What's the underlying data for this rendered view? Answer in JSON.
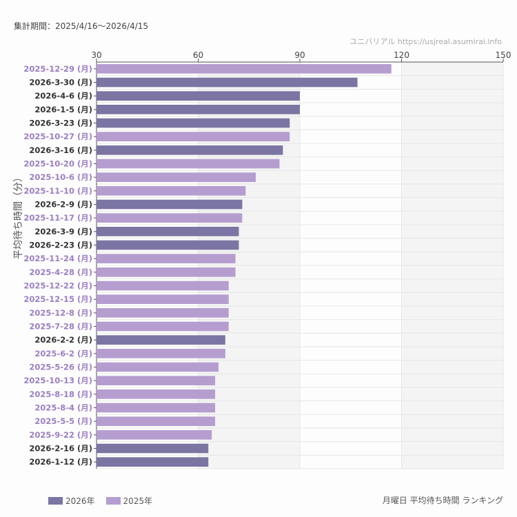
{
  "header": {
    "period": "集計期間：2025/4/16〜2026/4/15",
    "credit": "ユニバリアル https://usjreal.asumirai.info"
  },
  "footer": {
    "caption": "月曜日 平均待ち時間 ランキング"
  },
  "colors": {
    "2026": "#7b75a3",
    "2025": "#b59ecf",
    "label2026": "#333333",
    "label2025": "#9b7fc4"
  },
  "chart_data": {
    "type": "bar",
    "orientation": "horizontal",
    "ylabel": "平均待ち時間（分）",
    "xlim": [
      30,
      150
    ],
    "xticks": [
      "30",
      "60",
      "90",
      "120",
      "150"
    ],
    "legend": [
      {
        "name": "2026年",
        "key": "2026"
      },
      {
        "name": "2025年",
        "key": "2025"
      }
    ],
    "legend_placement": "bottom-left",
    "categories": [
      "2025-12-29 (月)",
      "2026-3-30 (月)",
      "2026-4-6 (月)",
      "2026-1-5 (月)",
      "2026-3-23 (月)",
      "2025-10-27 (月)",
      "2026-3-16 (月)",
      "2025-10-20 (月)",
      "2025-10-6 (月)",
      "2025-11-10 (月)",
      "2026-2-9 (月)",
      "2025-11-17 (月)",
      "2026-3-9 (月)",
      "2026-2-23 (月)",
      "2025-11-24 (月)",
      "2025-4-28 (月)",
      "2025-12-22 (月)",
      "2025-12-15 (月)",
      "2025-12-8 (月)",
      "2025-7-28 (月)",
      "2026-2-2 (月)",
      "2025-6-2 (月)",
      "2025-5-26 (月)",
      "2025-10-13 (月)",
      "2025-8-18 (月)",
      "2025-8-4 (月)",
      "2025-5-5 (月)",
      "2025-9-22 (月)",
      "2026-2-16 (月)",
      "2026-1-12 (月)"
    ],
    "values": [
      117,
      107,
      90,
      90,
      87,
      87,
      85,
      84,
      77,
      74,
      73,
      73,
      72,
      72,
      71,
      71,
      69,
      69,
      69,
      69,
      68,
      68,
      66,
      65,
      65,
      65,
      65,
      64,
      63,
      63
    ],
    "years": [
      "2025",
      "2026",
      "2026",
      "2026",
      "2026",
      "2025",
      "2026",
      "2025",
      "2025",
      "2025",
      "2026",
      "2025",
      "2026",
      "2026",
      "2025",
      "2025",
      "2025",
      "2025",
      "2025",
      "2025",
      "2026",
      "2025",
      "2025",
      "2025",
      "2025",
      "2025",
      "2025",
      "2025",
      "2026",
      "2026"
    ]
  }
}
